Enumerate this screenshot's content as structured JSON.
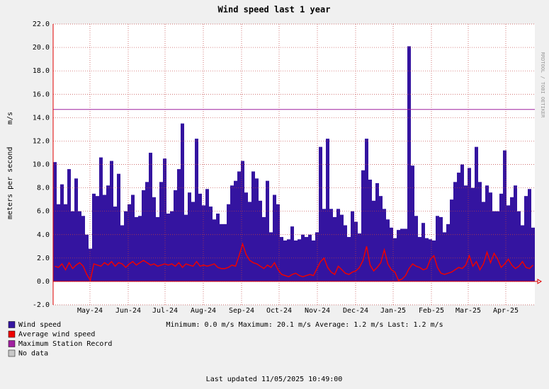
{
  "chart_data": {
    "type": "bar",
    "title": "Wind speed last 1 year",
    "y_label": "meters per second",
    "y_unit": "m/s",
    "side_text": "RRDTOOL / TOBI OETIKER",
    "xlim": [
      0,
      136
    ],
    "xticks": [
      {
        "value": 10.4,
        "label": "May-24"
      },
      {
        "value": 21.2,
        "label": "Jun-24"
      },
      {
        "value": 31.6,
        "label": "Jul-24"
      },
      {
        "value": 42.4,
        "label": "Aug-24"
      },
      {
        "value": 53.2,
        "label": "Sep-24"
      },
      {
        "value": 63.8,
        "label": "Oct-24"
      },
      {
        "value": 74.6,
        "label": "Nov-24"
      },
      {
        "value": 85.4,
        "label": "Dec-24"
      },
      {
        "value": 96,
        "label": "Jan-25"
      },
      {
        "value": 106.8,
        "label": "Feb-25"
      },
      {
        "value": 117.2,
        "label": "Mar-25"
      },
      {
        "value": 127.8,
        "label": "Apr-25"
      }
    ],
    "ylim": [
      -2,
      22
    ],
    "yticks": [
      {
        "value": -2,
        "label": "-2.0"
      },
      {
        "value": 0,
        "label": "0.0"
      },
      {
        "value": 2,
        "label": "2.0"
      },
      {
        "value": 4,
        "label": "4.0"
      },
      {
        "value": 6,
        "label": "6.0"
      },
      {
        "value": 8,
        "label": "8.0"
      },
      {
        "value": 10,
        "label": "10.0"
      },
      {
        "value": 12,
        "label": "12.0"
      },
      {
        "value": 14,
        "label": "14.0"
      },
      {
        "value": 16,
        "label": "16.0"
      },
      {
        "value": 18,
        "label": "18.0"
      },
      {
        "value": 20,
        "label": "20.0"
      },
      {
        "value": 22,
        "label": "22.0"
      }
    ],
    "grid": true,
    "series": [
      {
        "name": "Wind speed",
        "color": "#3414a0",
        "values": [
          10.2,
          6.6,
          8.3,
          6.6,
          9.6,
          6.0,
          8.8,
          6.0,
          5.6,
          4.0,
          2.8,
          7.5,
          7.3,
          10.6,
          7.4,
          8.2,
          10.3,
          6.4,
          9.2,
          4.8,
          6.0,
          6.6,
          7.4,
          5.5,
          5.6,
          7.8,
          8.5,
          11.0,
          7.2,
          5.5,
          8.5,
          10.5,
          5.8,
          6.0,
          7.8,
          9.6,
          13.5,
          5.7,
          7.6,
          6.8,
          12.2,
          7.5,
          6.5,
          7.9,
          6.4,
          5.3,
          5.8,
          4.9,
          4.9,
          6.6,
          8.2,
          8.6,
          9.4,
          10.3,
          7.6,
          6.8,
          9.4,
          8.8,
          6.9,
          5.5,
          8.6,
          4.2,
          7.4,
          6.6,
          3.8,
          3.5,
          3.6,
          4.7,
          3.5,
          3.6,
          4.0,
          3.8,
          4.0,
          3.5,
          4.2,
          11.5,
          6.2,
          12.2,
          6.2,
          5.5,
          6.2,
          5.7,
          4.8,
          3.8,
          6.0,
          5.1,
          4.1,
          9.5,
          12.2,
          8.7,
          6.9,
          8.4,
          7.3,
          6.2,
          5.3,
          4.6,
          3.7,
          4.4,
          4.5,
          4.5,
          20.1,
          9.9,
          5.6,
          3.8,
          5.0,
          3.7,
          3.6,
          3.5,
          5.6,
          5.5,
          4.2,
          4.9,
          7.0,
          8.5,
          9.3,
          10.0,
          8.2,
          9.7,
          8.0,
          11.5,
          8.5,
          6.8,
          8.2,
          7.6,
          6.0,
          6.0,
          7.5,
          11.2,
          6.5,
          7.2,
          8.2,
          6.0,
          4.8,
          7.3,
          7.9,
          4.6
        ]
      },
      {
        "name": "Average wind speed",
        "color": "#ee0000",
        "values": [
          1.3,
          1.2,
          1.5,
          1.0,
          1.6,
          1.1,
          1.4,
          1.6,
          1.3,
          0.6,
          0.1,
          1.5,
          1.4,
          1.3,
          1.6,
          1.4,
          1.7,
          1.3,
          1.6,
          1.5,
          1.2,
          1.5,
          1.7,
          1.4,
          1.6,
          1.8,
          1.6,
          1.4,
          1.5,
          1.3,
          1.4,
          1.5,
          1.4,
          1.5,
          1.3,
          1.6,
          1.2,
          1.5,
          1.4,
          1.3,
          1.7,
          1.3,
          1.4,
          1.3,
          1.4,
          1.5,
          1.2,
          1.1,
          1.1,
          1.2,
          1.4,
          1.3,
          2.2,
          3.2,
          2.3,
          1.8,
          1.6,
          1.5,
          1.3,
          1.1,
          1.4,
          1.2,
          1.6,
          1.0,
          0.6,
          0.5,
          0.4,
          0.6,
          0.7,
          0.5,
          0.4,
          0.5,
          0.6,
          0.5,
          1.1,
          1.7,
          2.0,
          1.2,
          0.8,
          0.6,
          1.3,
          1.0,
          0.7,
          0.6,
          0.8,
          0.9,
          1.2,
          1.8,
          3.0,
          1.4,
          0.9,
          1.2,
          1.6,
          2.7,
          1.5,
          1.0,
          0.8,
          0.1,
          0.2,
          0.5,
          1.1,
          1.5,
          1.3,
          1.2,
          1.0,
          1.1,
          1.9,
          2.2,
          1.2,
          0.7,
          0.6,
          0.7,
          0.8,
          1.0,
          1.2,
          1.1,
          1.4,
          2.2,
          1.3,
          1.7,
          1.0,
          1.5,
          2.5,
          1.6,
          2.4,
          1.9,
          1.2,
          1.5,
          1.9,
          1.4,
          1.1,
          1.3,
          1.7,
          1.2,
          1.1,
          1.4
        ]
      }
    ],
    "record": {
      "name": "Maximum Station Record",
      "color": "#a020a0",
      "value": 14.7
    },
    "no_data": {
      "name": "No data",
      "color": "#c8c8c8"
    },
    "stats": "Minimum: 0.0 m/s  Maximum: 20.1 m/s  Average: 1.2 m/s  Last: 1.2 m/s",
    "footer": "Last updated 11/05/2025 10:49:00"
  }
}
